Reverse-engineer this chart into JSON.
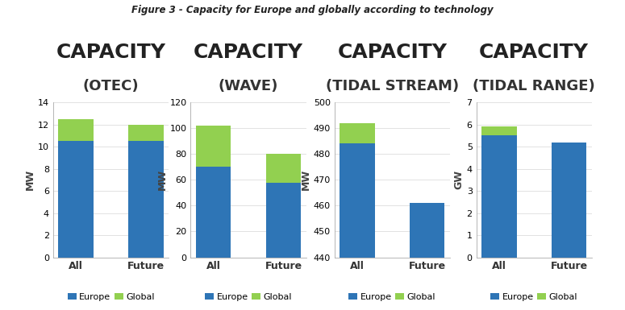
{
  "title": "Figure 3 - Capacity for Europe and globally according to technology",
  "subplots": [
    {
      "capacity_title": "CAPACITY",
      "sub_title": "(OTEC)",
      "ylabel": "MW",
      "ylim": [
        0,
        14
      ],
      "yticks": [
        0,
        2,
        4,
        6,
        8,
        10,
        12,
        14
      ],
      "categories": [
        "All",
        "Future"
      ],
      "europe_values": [
        10.5,
        10.5
      ],
      "global_values": [
        2.0,
        1.5
      ]
    },
    {
      "capacity_title": "CAPACITY",
      "sub_title": "(WAVE)",
      "ylabel": "MW",
      "ylim": [
        0,
        120
      ],
      "yticks": [
        0,
        20,
        40,
        60,
        80,
        100,
        120
      ],
      "categories": [
        "All",
        "Future"
      ],
      "europe_values": [
        70,
        58
      ],
      "global_values": [
        32,
        22
      ]
    },
    {
      "capacity_title": "CAPACITY",
      "sub_title": "(TIDAL STREAM)",
      "ylabel": "MW",
      "ylim": [
        440,
        500
      ],
      "yticks": [
        440,
        450,
        460,
        470,
        480,
        490,
        500
      ],
      "categories": [
        "All",
        "Future"
      ],
      "europe_values": [
        484,
        461
      ],
      "global_values": [
        8,
        0
      ]
    },
    {
      "capacity_title": "CAPACITY",
      "sub_title": "(TIDAL RANGE)",
      "ylabel": "GW",
      "ylim": [
        0,
        7
      ],
      "yticks": [
        0,
        1,
        2,
        3,
        4,
        5,
        6,
        7
      ],
      "categories": [
        "All",
        "Future"
      ],
      "europe_values": [
        5.5,
        5.2
      ],
      "global_values": [
        0.4,
        0.0
      ]
    }
  ],
  "color_europe": "#2E75B6",
  "color_global": "#92D050",
  "background_color": "#FFFFFF",
  "title_fontsize": 8.5,
  "cap_title_fontsize": 18,
  "sub_title_fontsize": 13,
  "ylabel_fontsize": 9,
  "tick_fontsize": 8,
  "legend_fontsize": 8,
  "bar_width": 0.5
}
